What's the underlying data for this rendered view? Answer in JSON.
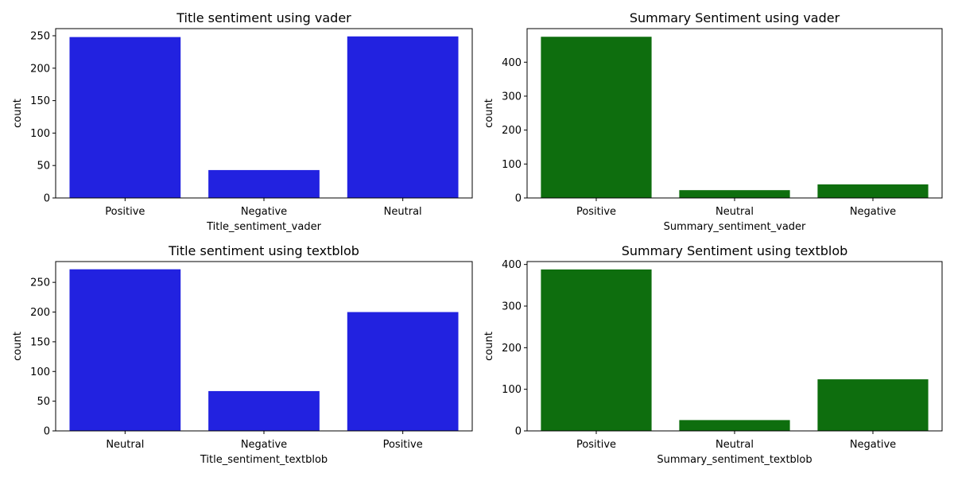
{
  "chart_data": [
    {
      "type": "bar",
      "title": "Title sentiment using vader",
      "xlabel": "Title_sentiment_vader",
      "ylabel": "count",
      "categories": [
        "Positive",
        "Negative",
        "Neutral"
      ],
      "values": [
        248,
        43,
        249
      ],
      "ylim": [
        0,
        261
      ],
      "yticks": [
        "0",
        "50",
        "100",
        "150",
        "200",
        "250"
      ],
      "color": "#2222e0"
    },
    {
      "type": "bar",
      "title": "Summary Sentiment using vader",
      "xlabel": "Summary_sentiment_vader",
      "ylabel": "count",
      "categories": [
        "Positive",
        "Neutral",
        "Negative"
      ],
      "values": [
        475,
        23,
        40
      ],
      "ylim": [
        0,
        499
      ],
      "yticks": [
        "0",
        "100",
        "200",
        "300",
        "400"
      ],
      "color": "#0e6e0e"
    },
    {
      "type": "bar",
      "title": "Title sentiment using textblob",
      "xlabel": "Title_sentiment_textblob",
      "ylabel": "count",
      "categories": [
        "Neutral",
        "Negative",
        "Positive"
      ],
      "values": [
        272,
        67,
        200
      ],
      "ylim": [
        0,
        285
      ],
      "yticks": [
        "0",
        "50",
        "100",
        "150",
        "200",
        "250"
      ],
      "color": "#2222e0"
    },
    {
      "type": "bar",
      "title": "Summary Sentiment using textblob",
      "xlabel": "Summary_sentiment_textblob",
      "ylabel": "count",
      "categories": [
        "Positive",
        "Neutral",
        "Negative"
      ],
      "values": [
        388,
        26,
        124
      ],
      "ylim": [
        0,
        407
      ],
      "yticks": [
        "0",
        "100",
        "200",
        "300",
        "400"
      ],
      "color": "#0e6e0e"
    }
  ]
}
